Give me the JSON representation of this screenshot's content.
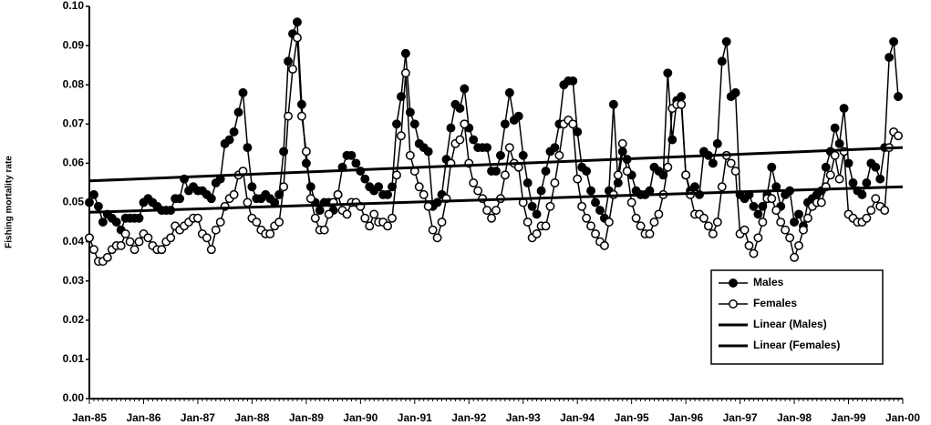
{
  "chart_data": {
    "type": "line",
    "y_label": "Fishing mortality rate",
    "categories": [
      "Jan-85",
      null,
      null,
      null,
      null,
      null,
      null,
      null,
      null,
      null,
      null,
      null,
      "Jan-86",
      null,
      null,
      null,
      null,
      null,
      null,
      null,
      null,
      null,
      null,
      null,
      "Jan-87",
      null,
      null,
      null,
      null,
      null,
      null,
      null,
      null,
      null,
      null,
      null,
      "Jan-88",
      null,
      null,
      null,
      null,
      null,
      null,
      null,
      null,
      null,
      null,
      null,
      "Jan-89",
      null,
      null,
      null,
      null,
      null,
      null,
      null,
      null,
      null,
      null,
      null,
      "Jan-90",
      null,
      null,
      null,
      null,
      null,
      null,
      null,
      null,
      null,
      null,
      null,
      "Jan-91",
      null,
      null,
      null,
      null,
      null,
      null,
      null,
      null,
      null,
      null,
      null,
      "Jan-92",
      null,
      null,
      null,
      null,
      null,
      null,
      null,
      null,
      null,
      null,
      null,
      "Jan-93",
      null,
      null,
      null,
      null,
      null,
      null,
      null,
      null,
      null,
      null,
      null,
      "Jan-94",
      null,
      null,
      null,
      null,
      null,
      null,
      null,
      null,
      null,
      null,
      null,
      "Jan-95",
      null,
      null,
      null,
      null,
      null,
      null,
      null,
      null,
      null,
      null,
      null,
      "Jan-96",
      null,
      null,
      null,
      null,
      null,
      null,
      null,
      null,
      null,
      null,
      null,
      "Jan-97",
      null,
      null,
      null,
      null,
      null,
      null,
      null,
      null,
      null,
      null,
      null,
      "Jan-98",
      null,
      null,
      null,
      null,
      null,
      null,
      null,
      null,
      null,
      null,
      null,
      "Jan-99",
      null,
      null,
      null,
      null,
      null,
      null,
      null,
      null,
      null,
      null,
      null,
      "Jan-00"
    ],
    "series": [
      {
        "name": "Males",
        "color": "#000000",
        "marker": "filled",
        "values": [
          0.05,
          0.052,
          0.049,
          0.045,
          0.047,
          0.046,
          0.045,
          0.043,
          0.046,
          0.046,
          0.046,
          0.046,
          0.05,
          0.051,
          0.05,
          0.049,
          0.048,
          0.048,
          0.048,
          0.051,
          0.051,
          0.056,
          0.053,
          0.054,
          0.053,
          0.053,
          0.052,
          0.051,
          0.055,
          0.056,
          0.065,
          0.066,
          0.068,
          0.073,
          0.078,
          0.064,
          0.054,
          0.051,
          0.051,
          0.052,
          0.051,
          0.05,
          0.052,
          0.063,
          0.086,
          0.093,
          0.096,
          0.075,
          0.06,
          0.054,
          0.05,
          0.048,
          0.05,
          0.05,
          0.048,
          0.052,
          0.059,
          0.062,
          0.062,
          0.06,
          0.058,
          0.056,
          0.054,
          0.053,
          0.054,
          0.052,
          0.052,
          0.054,
          0.07,
          0.077,
          0.088,
          0.073,
          0.07,
          0.065,
          0.064,
          0.063,
          0.049,
          0.05,
          0.052,
          0.061,
          0.069,
          0.075,
          0.074,
          0.079,
          0.069,
          0.066,
          0.064,
          0.064,
          0.064,
          0.058,
          0.058,
          0.062,
          0.07,
          0.078,
          0.071,
          0.072,
          0.062,
          0.055,
          0.049,
          0.047,
          0.053,
          0.058,
          0.063,
          0.064,
          0.07,
          0.08,
          0.081,
          0.081,
          0.068,
          0.059,
          0.058,
          0.053,
          0.05,
          0.048,
          0.046,
          0.053,
          0.075,
          0.055,
          0.063,
          0.061,
          0.057,
          0.053,
          0.052,
          0.052,
          0.053,
          0.059,
          0.058,
          0.057,
          0.083,
          0.066,
          0.076,
          0.077,
          0.057,
          0.053,
          0.054,
          0.052,
          0.063,
          0.062,
          0.06,
          0.065,
          0.086,
          0.091,
          0.077,
          0.078,
          0.052,
          0.051,
          0.052,
          0.049,
          0.047,
          0.049,
          0.052,
          0.059,
          0.054,
          0.049,
          0.052,
          0.053,
          0.045,
          0.047,
          0.044,
          0.05,
          0.051,
          0.052,
          0.053,
          0.059,
          0.063,
          0.069,
          0.065,
          0.074,
          0.06,
          0.055,
          0.053,
          0.052,
          0.055,
          0.06,
          0.059,
          0.056,
          0.064,
          0.087,
          0.091,
          0.077,
          null
        ]
      },
      {
        "name": "Females",
        "color": "#000000",
        "marker": "open",
        "values": [
          0.041,
          0.038,
          0.035,
          0.035,
          0.036,
          0.038,
          0.039,
          0.039,
          0.042,
          0.04,
          0.038,
          0.04,
          0.042,
          0.041,
          0.039,
          0.038,
          0.038,
          0.04,
          0.041,
          0.044,
          0.043,
          0.044,
          0.045,
          0.046,
          0.046,
          0.042,
          0.041,
          0.038,
          0.043,
          0.045,
          0.049,
          0.051,
          0.052,
          0.057,
          0.058,
          0.05,
          0.046,
          0.045,
          0.043,
          0.042,
          0.042,
          0.044,
          0.045,
          0.054,
          0.072,
          0.084,
          0.092,
          0.072,
          0.063,
          0.051,
          0.046,
          0.043,
          0.043,
          0.047,
          0.05,
          0.052,
          0.048,
          0.047,
          0.05,
          0.05,
          0.049,
          0.046,
          0.044,
          0.047,
          0.045,
          0.045,
          0.044,
          0.046,
          0.057,
          0.067,
          0.083,
          0.062,
          0.058,
          0.054,
          0.052,
          0.049,
          0.043,
          0.041,
          0.045,
          0.051,
          0.06,
          0.065,
          0.066,
          0.07,
          0.06,
          0.055,
          0.053,
          0.051,
          0.048,
          0.046,
          0.048,
          0.051,
          0.057,
          0.064,
          0.06,
          0.059,
          0.05,
          0.045,
          0.041,
          0.042,
          0.044,
          0.044,
          0.049,
          0.055,
          0.062,
          0.07,
          0.071,
          0.07,
          0.056,
          0.049,
          0.046,
          0.044,
          0.042,
          0.04,
          0.039,
          0.045,
          0.052,
          0.057,
          0.065,
          0.058,
          0.05,
          0.046,
          0.044,
          0.042,
          0.042,
          0.045,
          0.047,
          0.052,
          0.059,
          0.074,
          0.075,
          0.075,
          0.057,
          0.052,
          0.047,
          0.047,
          0.046,
          0.044,
          0.042,
          0.045,
          0.054,
          0.062,
          0.06,
          0.058,
          0.042,
          0.043,
          0.039,
          0.037,
          0.041,
          0.045,
          0.051,
          0.051,
          0.048,
          0.045,
          0.043,
          0.041,
          0.036,
          0.039,
          0.043,
          0.046,
          0.049,
          0.05,
          0.05,
          0.054,
          0.057,
          0.062,
          0.056,
          0.063,
          0.047,
          0.046,
          0.045,
          0.045,
          0.046,
          0.048,
          0.051,
          0.049,
          0.048,
          0.064,
          0.068,
          0.067,
          null
        ]
      }
    ],
    "trendlines": [
      {
        "name": "Linear (Males)",
        "color": "#000000",
        "values": [
          0.0555,
          0.064
        ]
      },
      {
        "name": "Linear (Females)",
        "color": "#000000",
        "values": [
          0.0475,
          0.054
        ]
      }
    ],
    "ylim": [
      0,
      0.1
    ],
    "yticks": [
      {
        "value": 0,
        "label": "0.00"
      },
      0.01,
      0.02,
      0.03,
      0.04,
      0.05,
      0.06,
      0.07,
      0.08,
      0.09,
      {
        "value": 0.1,
        "label": "0.10"
      }
    ],
    "legend": "right"
  }
}
